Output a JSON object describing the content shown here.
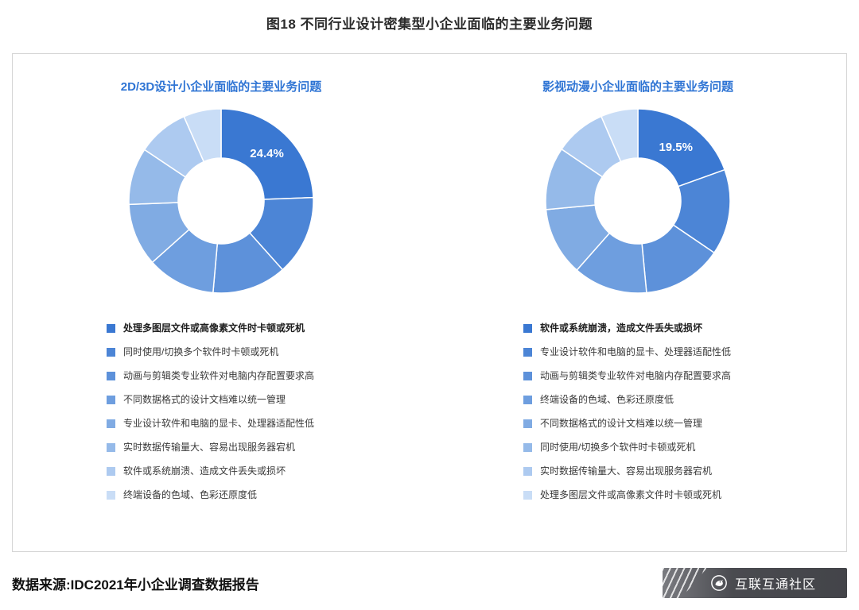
{
  "title": "图18 不同行业设计密集型小企业面临的主要业务问题",
  "source": "数据来源:IDC2021年小企业调查数据报告",
  "brand": "互联互通社区",
  "colors": {
    "accent_blue": "#2e74d4",
    "panel_border": "#d5d5d5",
    "logo_background": "#4a4b50",
    "segment_colors": [
      "#3a78d2",
      "#4c85d6",
      "#5d91da",
      "#6e9edf",
      "#80abe3",
      "#95bae9",
      "#adcaf0",
      "#c9ddf6"
    ]
  },
  "chart_data": [
    {
      "type": "pie",
      "donut": true,
      "title": "2D/3D设计小企业面临的主要业务问题",
      "callout": "24.4%",
      "legend_position": "bottom",
      "categories": [
        "处理多图层文件或高像素文件时卡顿或死机",
        "同时使用/切换多个软件时卡顿或死机",
        "动画与剪辑类专业软件对电脑内存配置要求高",
        "不同数据格式的设计文档难以统一管理",
        "专业设计软件和电脑的显卡、处理器适配性低",
        "实时数据传输量大、容易出现服务器宕机",
        "软件或系统崩溃、造成文件丢失或损坏",
        "终端设备的色域、色彩还原度低"
      ],
      "values": [
        24.4,
        14,
        13,
        12,
        11,
        10,
        9,
        6.6
      ]
    },
    {
      "type": "pie",
      "donut": true,
      "title": "影视动漫小企业面临的主要业务问题",
      "callout": "19.5%",
      "legend_position": "bottom",
      "categories": [
        "软件或系统崩溃，造成文件丢失或损坏",
        "专业设计软件和电脑的显卡、处理器适配性低",
        "动画与剪辑类专业软件对电脑内存配置要求高",
        "终端设备的色域、色彩还原度低",
        "不同数据格式的设计文档难以统一管理",
        "同时使用/切换多个软件时卡顿或死机",
        "实时数据传输量大、容易出现服务器宕机",
        "处理多图层文件或高像素文件时卡顿或死机"
      ],
      "values": [
        19.5,
        15,
        14,
        13,
        12,
        11,
        9,
        6.5
      ]
    }
  ]
}
